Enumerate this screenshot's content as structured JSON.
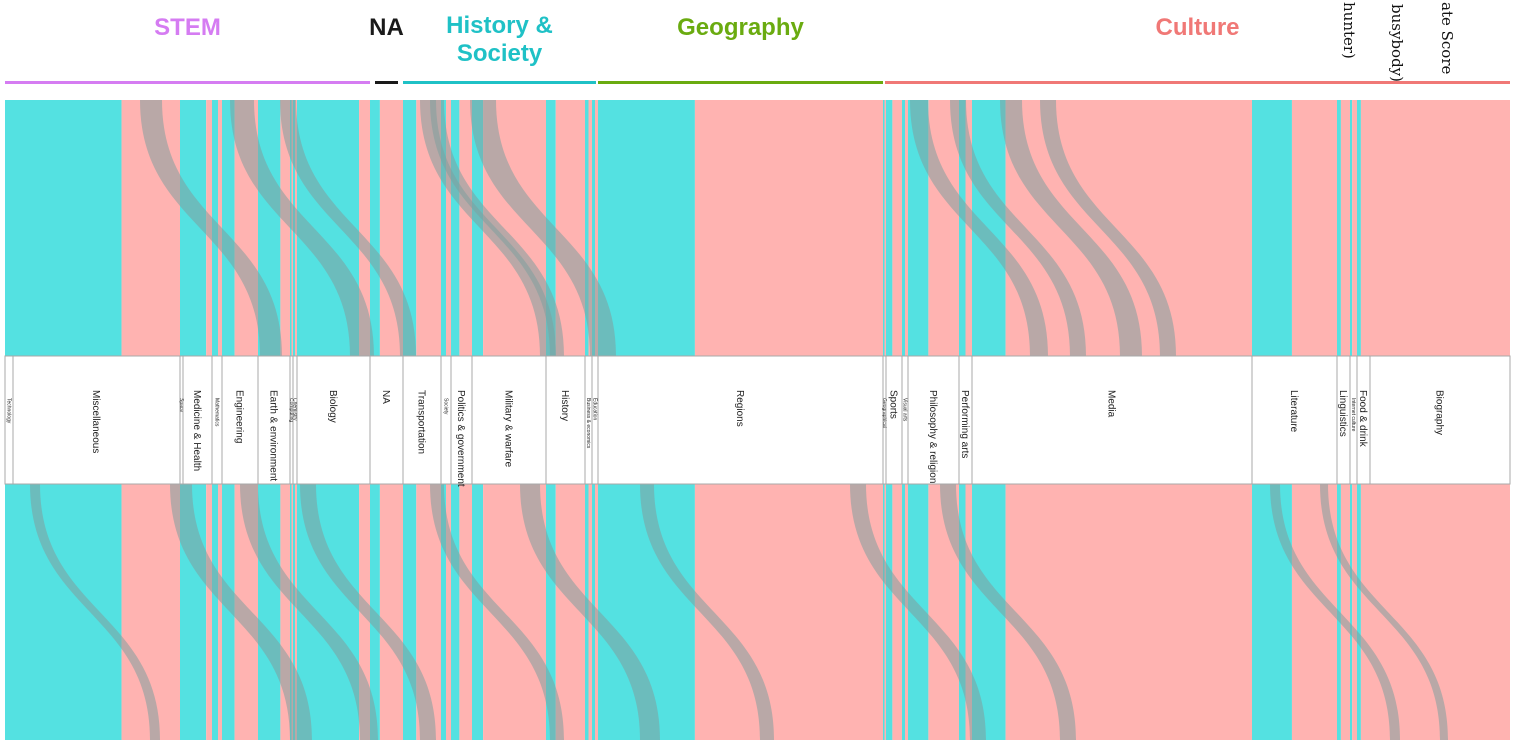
{
  "colors": {
    "stem": "#d57cf2",
    "na": "#1a1a1a",
    "history": "#1fc1c6",
    "geography": "#6aab10",
    "culture": "#f07876",
    "cyan": "#54e1e1",
    "pink": "#ffb3b1",
    "grey": "#7f9f9f"
  },
  "groups": [
    {
      "key": "stem",
      "label": "STEM",
      "label2": "",
      "x0": 5,
      "x1": 370
    },
    {
      "key": "na",
      "label": "NA",
      "label2": "",
      "x0": 375,
      "x1": 398
    },
    {
      "key": "history",
      "label": "History &",
      "label2": "Society",
      "x0": 403,
      "x1": 596
    },
    {
      "key": "geography",
      "label": "Geography",
      "label2": "",
      "x0": 598,
      "x1": 883
    },
    {
      "key": "culture",
      "label": "Culture",
      "label2": "",
      "x0": 885,
      "x1": 1510
    }
  ],
  "side_labels": [
    "hunter)",
    "busybody)",
    "ate Score"
  ],
  "categories": [
    {
      "name": "Technology",
      "x0": 5,
      "x1": 13,
      "cyan": 1.0
    },
    {
      "name": "Miscellaneous",
      "x0": 13,
      "x1": 180,
      "cyan": 0.65
    },
    {
      "name": "Space",
      "x0": 180,
      "x1": 183,
      "cyan": 1.0
    },
    {
      "name": "Medicine & Health",
      "x0": 183,
      "x1": 212,
      "cyan": 0.8
    },
    {
      "name": "Mathematics",
      "x0": 212,
      "x1": 222,
      "cyan": 0.6
    },
    {
      "name": "Engineering",
      "x0": 222,
      "x1": 258,
      "cyan": 0.35
    },
    {
      "name": "Earth & environment",
      "x0": 258,
      "x1": 290,
      "cyan": 0.7
    },
    {
      "name": "Computing",
      "x0": 290,
      "x1": 293,
      "cyan": 0.5
    },
    {
      "name": "Chemistry",
      "x0": 293,
      "x1": 297,
      "cyan": 0.5
    },
    {
      "name": "Biology",
      "x0": 297,
      "x1": 370,
      "cyan": 0.85
    },
    {
      "name": "NA",
      "x0": 370,
      "x1": 403,
      "cyan": 0.3
    },
    {
      "name": "Transportation",
      "x0": 403,
      "x1": 441,
      "cyan": 0.35
    },
    {
      "name": "Society",
      "x0": 441,
      "x1": 451,
      "cyan": 0.5
    },
    {
      "name": "Politics & government",
      "x0": 451,
      "x1": 472,
      "cyan": 0.4
    },
    {
      "name": "Military & warfare",
      "x0": 472,
      "x1": 546,
      "cyan": 0.15
    },
    {
      "name": "History",
      "x0": 546,
      "x1": 585,
      "cyan": 0.25
    },
    {
      "name": "Business & economics",
      "x0": 585,
      "x1": 592,
      "cyan": 0.5
    },
    {
      "name": "Education",
      "x0": 592,
      "x1": 598,
      "cyan": 0.5
    },
    {
      "name": "Regions",
      "x0": 598,
      "x1": 883,
      "cyan": 0.34
    },
    {
      "name": "Geographical",
      "x0": 883,
      "x1": 886,
      "cyan": 0.5
    },
    {
      "name": "Sports",
      "x0": 886,
      "x1": 902,
      "cyan": 0.4
    },
    {
      "name": "Visual arts",
      "x0": 902,
      "x1": 908,
      "cyan": 0.5
    },
    {
      "name": "Philosophy & religion",
      "x0": 908,
      "x1": 959,
      "cyan": 0.4
    },
    {
      "name": "Performing arts",
      "x0": 959,
      "x1": 972,
      "cyan": 0.5
    },
    {
      "name": "Media",
      "x0": 972,
      "x1": 1252,
      "cyan": 0.12
    },
    {
      "name": "Literature",
      "x0": 1252,
      "x1": 1337,
      "cyan": 0.47
    },
    {
      "name": "Linguistics",
      "x0": 1337,
      "x1": 1350,
      "cyan": 0.3
    },
    {
      "name": "Internet culture",
      "x0": 1350,
      "x1": 1357,
      "cyan": 0.3
    },
    {
      "name": "Food & drink",
      "x0": 1357,
      "x1": 1370,
      "cyan": 0.3
    },
    {
      "name": "Biography",
      "x0": 1370,
      "x1": 1510,
      "cyan": 0.0
    }
  ],
  "top_flows": [
    {
      "x": 140,
      "w": 22
    },
    {
      "x": 230,
      "w": 24
    },
    {
      "x": 280,
      "w": 16
    },
    {
      "x": 420,
      "w": 16
    },
    {
      "x": 430,
      "w": 14
    },
    {
      "x": 470,
      "w": 26
    },
    {
      "x": 910,
      "w": 18
    },
    {
      "x": 950,
      "w": 16
    },
    {
      "x": 1000,
      "w": 22
    },
    {
      "x": 1040,
      "w": 16
    }
  ],
  "bottom_flows": [
    {
      "x": 30,
      "w": 10
    },
    {
      "x": 170,
      "w": 22
    },
    {
      "x": 240,
      "w": 18
    },
    {
      "x": 300,
      "w": 16
    },
    {
      "x": 430,
      "w": 14
    },
    {
      "x": 520,
      "w": 20
    },
    {
      "x": 640,
      "w": 14
    },
    {
      "x": 850,
      "w": 16
    },
    {
      "x": 940,
      "w": 16
    },
    {
      "x": 1270,
      "w": 10
    },
    {
      "x": 1320,
      "w": 8
    }
  ]
}
